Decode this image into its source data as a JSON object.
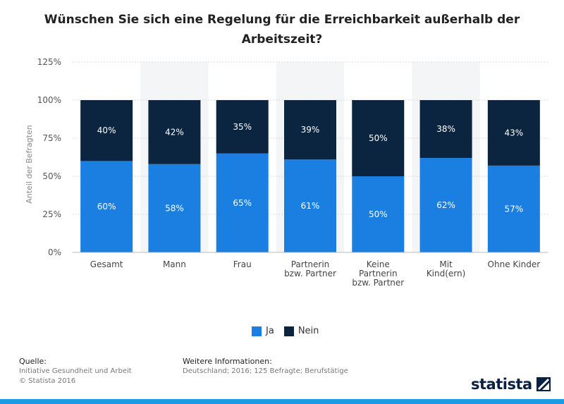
{
  "chart_data": {
    "type": "bar",
    "stacked": true,
    "title": "Wünschen Sie sich eine Regelung für die Erreichbarkeit außerhalb der Arbeitszeit?",
    "ylabel": "Anteil der Befragten",
    "xlabel": "",
    "ylim": [
      0,
      125
    ],
    "yticks": [
      "0%",
      "25%",
      "50%",
      "75%",
      "100%",
      "125%"
    ],
    "categories": [
      [
        "Gesamt"
      ],
      [
        "Mann"
      ],
      [
        "Frau"
      ],
      [
        "Partnerin",
        "bzw. Partner"
      ],
      [
        "Keine",
        "Partnerin",
        "bzw. Partner"
      ],
      [
        "Mit",
        "Kind(ern)"
      ],
      [
        "Ohne Kinder"
      ]
    ],
    "series": [
      {
        "name": "Ja",
        "color": "#1a7fe0",
        "values": [
          60,
          58,
          65,
          61,
          50,
          62,
          57
        ],
        "labels": [
          "60%",
          "58%",
          "65%",
          "61%",
          "50%",
          "62%",
          "57%"
        ]
      },
      {
        "name": "Nein",
        "color": "#0b2540",
        "values": [
          40,
          42,
          35,
          39,
          50,
          38,
          43
        ],
        "labels": [
          "40%",
          "42%",
          "35%",
          "39%",
          "50%",
          "38%",
          "43%"
        ]
      }
    ],
    "legend_position": "bottom-center"
  },
  "footer": {
    "source_heading": "Quelle:",
    "source_name": "Initiative Gesundheit und Arbeit",
    "copyright": "© Statista 2016",
    "info_heading": "Weitere Informationen:",
    "info_text": "Deutschland; 2016; 125 Befragte; Berufstätige"
  },
  "brand": {
    "name": "statista"
  }
}
